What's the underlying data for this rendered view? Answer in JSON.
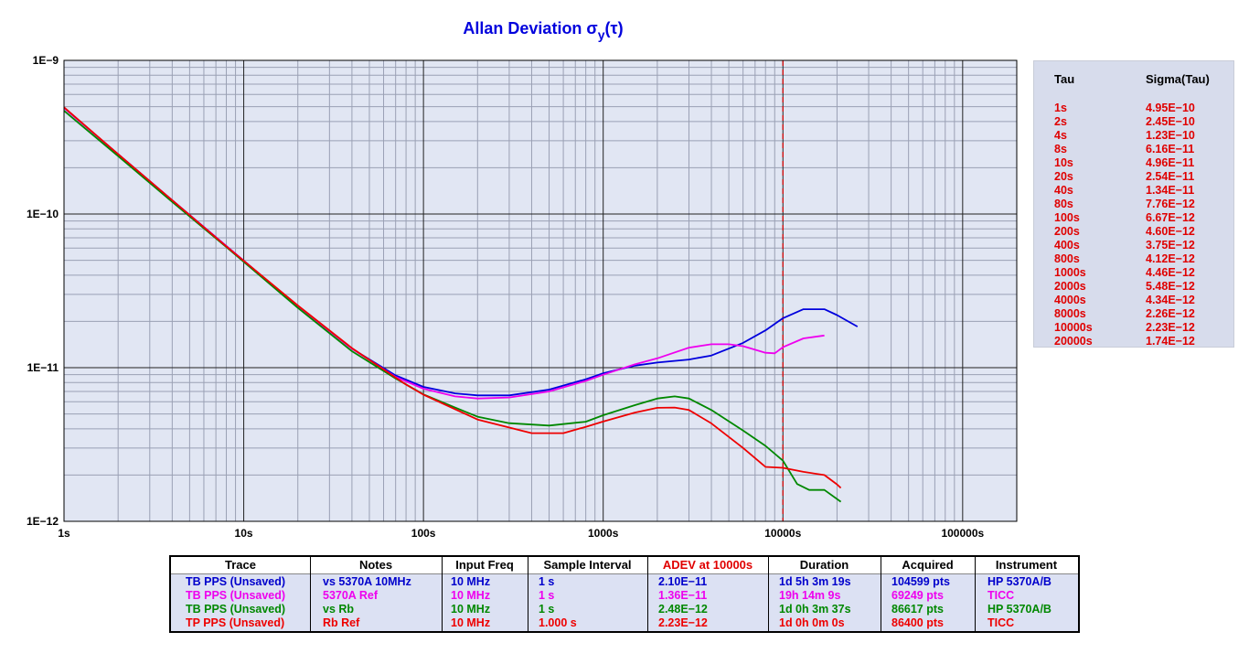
{
  "chart_data": {
    "type": "line",
    "title": "Allan Deviation σy(τ)",
    "title_main": "Allan Deviation σ",
    "title_sub": "y",
    "title_paren": "(τ)",
    "x_scale": "log",
    "y_scale": "log",
    "xlim": [
      1,
      200000
    ],
    "ylim": [
      1e-12,
      1e-09
    ],
    "x_ticks": [
      {
        "value": 1,
        "label": "1s"
      },
      {
        "value": 10,
        "label": "10s"
      },
      {
        "value": 100,
        "label": "100s"
      },
      {
        "value": 1000,
        "label": "1000s"
      },
      {
        "value": 10000,
        "label": "10000s"
      },
      {
        "value": 100000,
        "label": "100000s"
      }
    ],
    "y_ticks": [
      {
        "value": 1e-09,
        "label": "1E−9"
      },
      {
        "value": 1e-10,
        "label": "1E−10"
      },
      {
        "value": 1e-11,
        "label": "1E−11"
      },
      {
        "value": 1e-12,
        "label": "1E−12"
      }
    ],
    "grid": true,
    "marker_line": {
      "x": 10000,
      "color": "#e00000",
      "style": "dashed"
    },
    "series": [
      {
        "color": "#0000dd",
        "points": [
          [
            1,
            4.9e-10
          ],
          [
            2,
            2.45e-10
          ],
          [
            4,
            1.23e-10
          ],
          [
            8,
            6.2e-11
          ],
          [
            20,
            2.5e-11
          ],
          [
            40,
            1.33e-11
          ],
          [
            70,
            8.9e-12
          ],
          [
            100,
            7.5e-12
          ],
          [
            150,
            6.8e-12
          ],
          [
            200,
            6.6e-12
          ],
          [
            300,
            6.6e-12
          ],
          [
            500,
            7.2e-12
          ],
          [
            800,
            8.4e-12
          ],
          [
            1000,
            9.2e-12
          ],
          [
            1500,
            1.03e-11
          ],
          [
            2000,
            1.08e-11
          ],
          [
            3000,
            1.13e-11
          ],
          [
            4000,
            1.2e-11
          ],
          [
            6000,
            1.45e-11
          ],
          [
            8000,
            1.75e-11
          ],
          [
            10000,
            2.1e-11
          ],
          [
            13000,
            2.4e-11
          ],
          [
            17000,
            2.4e-11
          ],
          [
            20000,
            2.2e-11
          ],
          [
            26000,
            1.85e-11
          ]
        ]
      },
      {
        "color": "#ee00ee",
        "points": [
          [
            1,
            4.9e-10
          ],
          [
            2,
            2.45e-10
          ],
          [
            4,
            1.23e-10
          ],
          [
            8,
            6.2e-11
          ],
          [
            20,
            2.5e-11
          ],
          [
            40,
            1.33e-11
          ],
          [
            70,
            8.7e-12
          ],
          [
            100,
            7.3e-12
          ],
          [
            150,
            6.5e-12
          ],
          [
            200,
            6.3e-12
          ],
          [
            300,
            6.4e-12
          ],
          [
            500,
            7e-12
          ],
          [
            800,
            8.2e-12
          ],
          [
            1000,
            9e-12
          ],
          [
            1500,
            1.05e-11
          ],
          [
            2000,
            1.15e-11
          ],
          [
            3000,
            1.35e-11
          ],
          [
            4000,
            1.42e-11
          ],
          [
            5000,
            1.42e-11
          ],
          [
            6000,
            1.38e-11
          ],
          [
            8000,
            1.25e-11
          ],
          [
            9000,
            1.24e-11
          ],
          [
            10000,
            1.36e-11
          ],
          [
            13000,
            1.55e-11
          ],
          [
            17000,
            1.62e-11
          ]
        ]
      },
      {
        "color": "#008800",
        "points": [
          [
            1,
            4.7e-10
          ],
          [
            2,
            2.38e-10
          ],
          [
            4,
            1.2e-10
          ],
          [
            8,
            6.1e-11
          ],
          [
            20,
            2.45e-11
          ],
          [
            40,
            1.28e-11
          ],
          [
            70,
            8.5e-12
          ],
          [
            100,
            6.7e-12
          ],
          [
            150,
            5.5e-12
          ],
          [
            200,
            4.8e-12
          ],
          [
            300,
            4.35e-12
          ],
          [
            500,
            4.2e-12
          ],
          [
            800,
            4.45e-12
          ],
          [
            1000,
            4.9e-12
          ],
          [
            1500,
            5.7e-12
          ],
          [
            2000,
            6.3e-12
          ],
          [
            2500,
            6.5e-12
          ],
          [
            3000,
            6.3e-12
          ],
          [
            4000,
            5.3e-12
          ],
          [
            6000,
            3.9e-12
          ],
          [
            8000,
            3.1e-12
          ],
          [
            10000,
            2.48e-12
          ],
          [
            12000,
            1.75e-12
          ],
          [
            14000,
            1.6e-12
          ],
          [
            17000,
            1.6e-12
          ],
          [
            21000,
            1.34e-12
          ]
        ]
      },
      {
        "color": "#ee0000",
        "points": [
          [
            1,
            4.95e-10
          ],
          [
            2,
            2.45e-10
          ],
          [
            4,
            1.23e-10
          ],
          [
            8,
            6.16e-11
          ],
          [
            10,
            4.96e-11
          ],
          [
            20,
            2.54e-11
          ],
          [
            40,
            1.34e-11
          ],
          [
            80,
            7.76e-12
          ],
          [
            100,
            6.67e-12
          ],
          [
            200,
            4.6e-12
          ],
          [
            400,
            3.75e-12
          ],
          [
            600,
            3.75e-12
          ],
          [
            800,
            4.12e-12
          ],
          [
            1000,
            4.46e-12
          ],
          [
            1500,
            5.1e-12
          ],
          [
            2000,
            5.48e-12
          ],
          [
            2500,
            5.5e-12
          ],
          [
            3000,
            5.3e-12
          ],
          [
            4000,
            4.34e-12
          ],
          [
            6000,
            3e-12
          ],
          [
            8000,
            2.26e-12
          ],
          [
            10000,
            2.23e-12
          ],
          [
            13000,
            2.1e-12
          ],
          [
            17000,
            2e-12
          ],
          [
            20000,
            1.74e-12
          ],
          [
            21000,
            1.65e-12
          ]
        ]
      }
    ]
  },
  "tau_table": {
    "headers": [
      "Tau",
      "Sigma(Tau)"
    ],
    "rows": [
      [
        "1s",
        "4.95E−10"
      ],
      [
        "2s",
        "2.45E−10"
      ],
      [
        "4s",
        "1.23E−10"
      ],
      [
        "8s",
        "6.16E−11"
      ],
      [
        "10s",
        "4.96E−11"
      ],
      [
        "20s",
        "2.54E−11"
      ],
      [
        "40s",
        "1.34E−11"
      ],
      [
        "80s",
        "7.76E−12"
      ],
      [
        "100s",
        "6.67E−12"
      ],
      [
        "200s",
        "4.60E−12"
      ],
      [
        "400s",
        "3.75E−12"
      ],
      [
        "800s",
        "4.12E−12"
      ],
      [
        "1000s",
        "4.46E−12"
      ],
      [
        "2000s",
        "5.48E−12"
      ],
      [
        "4000s",
        "4.34E−12"
      ],
      [
        "8000s",
        "2.26E−12"
      ],
      [
        "10000s",
        "2.23E−12"
      ],
      [
        "20000s",
        "1.74E−12"
      ]
    ]
  },
  "legend_table": {
    "headers": [
      "Trace",
      "Notes",
      "Input Freq",
      "Sample Interval",
      "ADEV at 10000s",
      "Duration",
      "Acquired",
      "Instrument"
    ],
    "header_colors": [
      "#000000",
      "#000000",
      "#000000",
      "#000000",
      "#e00000",
      "#000000",
      "#000000",
      "#000000"
    ],
    "rows": [
      {
        "color": "#0000cc",
        "cells": [
          "TB PPS (Unsaved)",
          "vs 5370A 10MHz",
          "10 MHz",
          "1 s",
          "2.10E−11",
          "1d 5h 3m 19s",
          "104599 pts",
          "HP 5370A/B"
        ]
      },
      {
        "color": "#ee00ee",
        "cells": [
          "TB PPS (Unsaved)",
          "5370A Ref",
          "10 MHz",
          "1 s",
          "1.36E−11",
          "19h 14m 9s",
          "69249 pts",
          "TICC"
        ]
      },
      {
        "color": "#008800",
        "cells": [
          "TB PPS (Unsaved)",
          "vs Rb",
          "10 MHz",
          "1 s",
          "2.48E−12",
          "1d 0h 3m 37s",
          "86617 pts",
          "HP 5370A/B"
        ]
      },
      {
        "color": "#ee0000",
        "cells": [
          "TP PPS (Unsaved)",
          "Rb Ref",
          "10 MHz",
          "1.000 s",
          "2.23E−12",
          "1d 0h 0m 0s",
          "86400 pts",
          "TICC"
        ]
      }
    ]
  },
  "colors": {
    "plot_bg": "#e1e6f3",
    "panel_bg": "#d7dcec",
    "title": "#0000dd"
  }
}
